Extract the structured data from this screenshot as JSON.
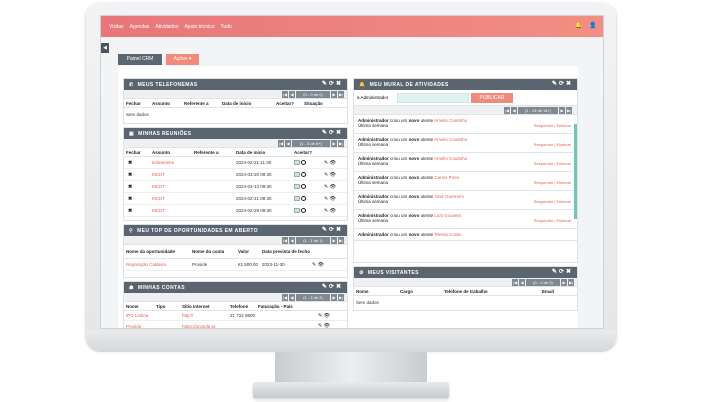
{
  "nav": [
    "Visitas",
    "Agendas",
    "Atividades",
    "Apoio técnico",
    "Tudo"
  ],
  "tabs": {
    "panel": "Painel CRM",
    "actions": "Ações ▾"
  },
  "calls": {
    "title": "MEUS TELEFONEMAS",
    "pager": "(0 - 0 de 0)",
    "cols": [
      "Fechar",
      "Assunto",
      "Referente a",
      "Data de início",
      "Aceitar?",
      "Situação"
    ],
    "empty": "Sem dados"
  },
  "meetings": {
    "title": "MINHAS REUNIÕES",
    "pager": "(1 - 5 de 6+)",
    "cols": [
      "Fechar",
      "Assunto",
      "Referente a",
      "Data de início",
      "Aceitar?"
    ],
    "rows": [
      {
        "subject": "testeeeeee",
        "date": "2024-02-21 11:30"
      },
      {
        "subject": "MCDT",
        "date": "2024-03-20 09:30"
      },
      {
        "subject": "MCDT",
        "date": "2024-03-13 09:30"
      },
      {
        "subject": "MCDT",
        "date": "2024-02-21 09:30"
      },
      {
        "subject": "MCDT",
        "date": "2024-02-28 09:30"
      }
    ]
  },
  "opps": {
    "title": "MEU TOP DE OPORTUNIDADES EM ABERTO",
    "pager": "(1 - 1 de 1)",
    "cols": [
      "Nome da oportunidade",
      "Nome da conta",
      "Valor",
      "Data prevista de fecho"
    ],
    "rows": [
      {
        "name": "Reparação Caldeira",
        "account": "Proside",
        "value": "€1,500.00",
        "date": "2023-11-30"
      }
    ]
  },
  "accounts": {
    "title": "MINHAS CONTAS",
    "pager": "(1 - 2 de 2)",
    "cols": [
      "Nome",
      "Tipo",
      "Sítio Internet",
      "Telefone",
      "Faturação - País"
    ],
    "rows": [
      {
        "name": "IPO Lisboa",
        "site": "http://",
        "phone": "21 722 9800"
      },
      {
        "name": "Proside",
        "site": "https://proside.pt",
        "phone": ""
      }
    ]
  },
  "mural": {
    "title": "MEU MURAL DE ATIVIDADES",
    "label": "a Administrador",
    "publish": "PUBLICAR",
    "pager": "(1 - 13 de 16+)",
    "rows": [
      {
        "who": "Administrador",
        "text": "criou um",
        "bold": "novo",
        "kind": "utente",
        "name": "Amelio Coutinho",
        "when": "Última semana"
      },
      {
        "who": "Administrador",
        "text": "criou um",
        "bold": "novo",
        "kind": "utente",
        "name": "Amelio Coutinho",
        "when": "Última semana"
      },
      {
        "who": "Administrador",
        "text": "criou um",
        "bold": "novo",
        "kind": "utente",
        "name": "Amelio Coutinho",
        "when": "Última semana"
      },
      {
        "who": "Administrador",
        "text": "criou um",
        "bold": "novo",
        "kind": "utente",
        "name": "Carlos Pires",
        "when": "Última semana"
      },
      {
        "who": "Administrador",
        "text": "criou um",
        "bold": "novo",
        "kind": "utente",
        "name": "José Guerreiro",
        "when": "Última semana"
      },
      {
        "who": "Administrador",
        "text": "criou um",
        "bold": "novo",
        "kind": "utente",
        "name": "Luís Gouveia",
        "when": "Última semana"
      },
      {
        "who": "Administrador",
        "text": "criou um",
        "bold": "novo",
        "kind": "utente",
        "name": "Teresa Costa",
        "when": ""
      }
    ],
    "respond": "Responder | Eliminar"
  },
  "visitors": {
    "title": "MEUS VISITANTES",
    "pager": "(0 - 0 de 0)",
    "cols": [
      "Nome",
      "Cargo",
      "Telefone de trabalho",
      "Email"
    ],
    "empty": "Sem dados"
  }
}
